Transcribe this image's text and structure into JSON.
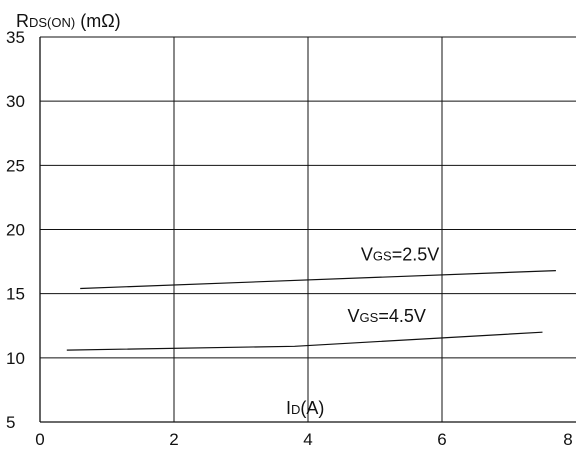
{
  "chart_data": {
    "type": "line",
    "ylabel": {
      "main": "R",
      "sub": "DS(ON)",
      "rest": " (mΩ)"
    },
    "xlabel": {
      "main": "I",
      "sub": "D",
      "rest": "(A)"
    },
    "xlim": [
      0,
      8
    ],
    "ylim": [
      5,
      35
    ],
    "x_ticks": [
      0,
      2,
      4,
      6,
      8
    ],
    "y_ticks": [
      5,
      10,
      15,
      20,
      25,
      30,
      35
    ],
    "grid": true,
    "line_color": "#111111",
    "series": [
      {
        "label": {
          "main": "V",
          "sub": "GS",
          "rest": "=2.5V"
        },
        "x": [
          0.6,
          7.7
        ],
        "y": [
          15.4,
          16.8
        ]
      },
      {
        "label": {
          "main": "V",
          "sub": "GS",
          "rest": "=4.5V"
        },
        "x": [
          0.4,
          3.8,
          7.5
        ],
        "y": [
          10.6,
          10.9,
          12.0
        ]
      }
    ]
  }
}
